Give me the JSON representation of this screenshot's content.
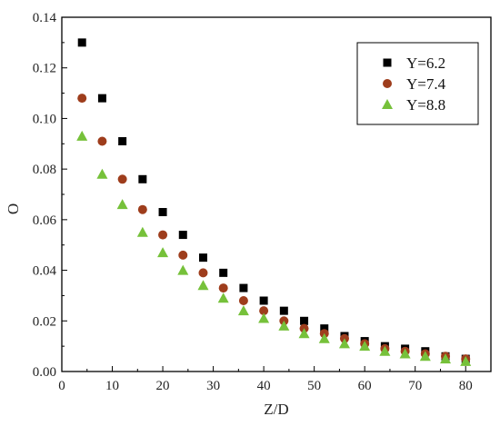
{
  "chart_data": {
    "type": "scatter",
    "title": "",
    "xlabel": "Z/D",
    "ylabel": "O",
    "xlim": [
      0,
      85
    ],
    "ylim": [
      0,
      0.14
    ],
    "xticks": [
      0,
      10,
      20,
      30,
      40,
      50,
      60,
      70,
      80
    ],
    "yticks": [
      0.0,
      0.02,
      0.04,
      0.06,
      0.08,
      0.1,
      0.12,
      0.14
    ],
    "ytick_labels": [
      "0.00",
      "0.02",
      "0.04",
      "0.06",
      "0.08",
      "0.10",
      "0.12",
      "0.14"
    ],
    "grid": false,
    "legend_position": "top-right",
    "series": [
      {
        "name": "Y=6.2",
        "marker": "square",
        "color": "#000000",
        "x": [
          4,
          8,
          12,
          16,
          20,
          24,
          28,
          32,
          36,
          40,
          44,
          48,
          52,
          56,
          60,
          64,
          68,
          72,
          76,
          80
        ],
        "y": [
          0.13,
          0.108,
          0.091,
          0.076,
          0.063,
          0.054,
          0.045,
          0.039,
          0.033,
          0.028,
          0.024,
          0.02,
          0.017,
          0.014,
          0.012,
          0.01,
          0.009,
          0.008,
          0.006,
          0.005
        ]
      },
      {
        "name": "Y=7.4",
        "marker": "circle",
        "color": "#9e3d1c",
        "x": [
          4,
          8,
          12,
          16,
          20,
          24,
          28,
          32,
          36,
          40,
          44,
          48,
          52,
          56,
          60,
          64,
          68,
          72,
          76,
          80
        ],
        "y": [
          0.108,
          0.091,
          0.076,
          0.064,
          0.054,
          0.046,
          0.039,
          0.033,
          0.028,
          0.024,
          0.02,
          0.017,
          0.015,
          0.013,
          0.011,
          0.009,
          0.008,
          0.007,
          0.006,
          0.005
        ]
      },
      {
        "name": "Y=8.8",
        "marker": "triangle",
        "color": "#76c13a",
        "x": [
          4,
          8,
          12,
          16,
          20,
          24,
          28,
          32,
          36,
          40,
          44,
          48,
          52,
          56,
          60,
          64,
          68,
          72,
          76,
          80
        ],
        "y": [
          0.093,
          0.078,
          0.066,
          0.055,
          0.047,
          0.04,
          0.034,
          0.029,
          0.024,
          0.021,
          0.018,
          0.015,
          0.013,
          0.011,
          0.01,
          0.008,
          0.007,
          0.006,
          0.005,
          0.004
        ]
      }
    ]
  }
}
